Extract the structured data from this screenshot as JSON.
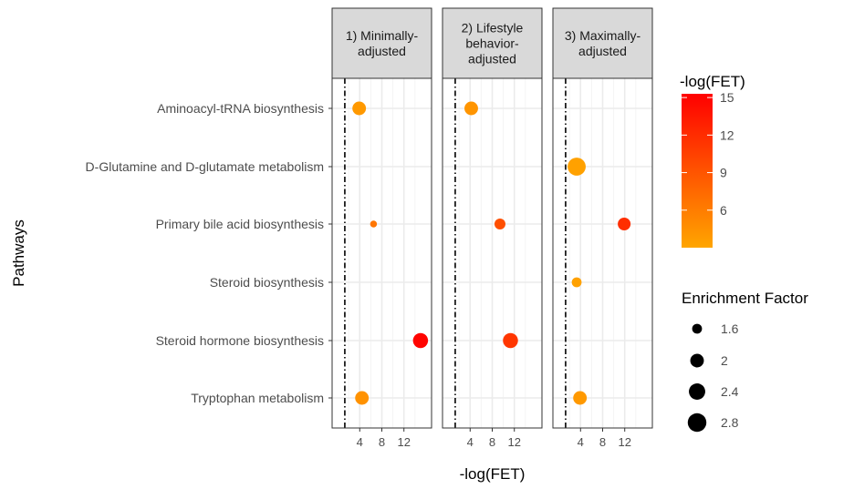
{
  "chart_data": {
    "type": "scatter",
    "xlabel": "-log(FET)",
    "ylabel": "Pathways",
    "xlim": [
      -1,
      17
    ],
    "x_ticks": [
      4,
      8,
      12
    ],
    "threshold_x": 1.3,
    "pathways": [
      "Aminoacyl-tRNA biosynthesis",
      "D-Glutamine and D-glutamate metabolism",
      "Primary bile acid biosynthesis",
      "Steroid biosynthesis",
      "Steroid hormone biosynthesis",
      "Tryptophan metabolism"
    ],
    "panels": [
      {
        "strip_lines": [
          "1) Minimally-",
          "adjusted"
        ],
        "points": [
          {
            "pathway": "Aminoacyl-tRNA biosynthesis",
            "neglog_fet": 3.9,
            "enrichment_factor": 2.0
          },
          {
            "pathway": "Primary bile acid biosynthesis",
            "neglog_fet": 6.5,
            "enrichment_factor": 1.4
          },
          {
            "pathway": "Steroid hormone biosynthesis",
            "neglog_fet": 15.0,
            "enrichment_factor": 2.2
          },
          {
            "pathway": "Tryptophan metabolism",
            "neglog_fet": 4.4,
            "enrichment_factor": 2.0
          }
        ]
      },
      {
        "strip_lines": [
          "2) Lifestyle",
          "behavior-",
          "adjusted"
        ],
        "points": [
          {
            "pathway": "Aminoacyl-tRNA biosynthesis",
            "neglog_fet": 4.2,
            "enrichment_factor": 2.0
          },
          {
            "pathway": "Primary bile acid biosynthesis",
            "neglog_fet": 9.4,
            "enrichment_factor": 1.7
          },
          {
            "pathway": "Steroid hormone biosynthesis",
            "neglog_fet": 11.3,
            "enrichment_factor": 2.2
          }
        ]
      },
      {
        "strip_lines": [
          "3) Maximally-",
          "adjusted"
        ],
        "points": [
          {
            "pathway": "D-Glutamine and D-glutamate metabolism",
            "neglog_fet": 3.3,
            "enrichment_factor": 2.7
          },
          {
            "pathway": "Primary bile acid biosynthesis",
            "neglog_fet": 11.9,
            "enrichment_factor": 1.9
          },
          {
            "pathway": "Steroid biosynthesis",
            "neglog_fet": 3.3,
            "enrichment_factor": 1.6
          },
          {
            "pathway": "Tryptophan metabolism",
            "neglog_fet": 3.9,
            "enrichment_factor": 2.0
          }
        ]
      }
    ],
    "color_legend": {
      "title": "-log(FET)",
      "range": [
        3,
        15.3
      ],
      "breaks": [
        6,
        9,
        12,
        15
      ],
      "low_color": "#ffa500",
      "high_color": "#ff0000"
    },
    "size_legend": {
      "title": "Enrichment Factor",
      "breaks": [
        1.6,
        2.0,
        2.4,
        2.8
      ],
      "range": [
        1.3,
        2.9
      ]
    }
  },
  "colors": {
    "strip_fill": "#d9d9d9",
    "grid": "#ebebeb",
    "panel_border": "#333333",
    "threshold": "#000000"
  }
}
